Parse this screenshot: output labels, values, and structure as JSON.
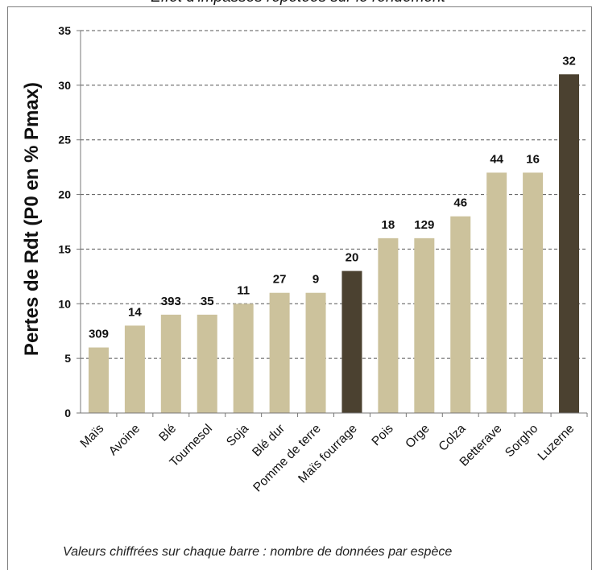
{
  "chart_data": {
    "type": "bar",
    "title": "Effet d'impasses répétées sur le rendement",
    "ylabel": "Pertes de Rdt (P0 en % Pmax)",
    "xlabel": "",
    "ylim": [
      0,
      35
    ],
    "yticks": [
      "0",
      "5",
      "10",
      "15",
      "20",
      "25",
      "30",
      "35"
    ],
    "grid": true,
    "categories": [
      "Maïs",
      "Avoine",
      "Blé",
      "Tournesol",
      "Soja",
      "Blé dur",
      "Pomme de terre",
      "Maïs fourrage",
      "Pois",
      "Orge",
      "Colza",
      "Betterave",
      "Sorgho",
      "Luzerne"
    ],
    "values": [
      6,
      8,
      9,
      9,
      10,
      11,
      11,
      13,
      16,
      16,
      18,
      22,
      22,
      31
    ],
    "data_labels": [
      "309",
      "14",
      "393",
      "35",
      "11",
      "27",
      "9",
      "20",
      "18",
      "129",
      "46",
      "44",
      "16",
      "32"
    ],
    "highlighted": [
      "Maïs fourrage",
      "Luzerne"
    ],
    "colors": {
      "bar": "#ccc29c",
      "highlight": "#4b4130",
      "grid": "#555555"
    },
    "footnote": "Valeurs chiffrées sur chaque barre : nombre de données par espèce"
  }
}
